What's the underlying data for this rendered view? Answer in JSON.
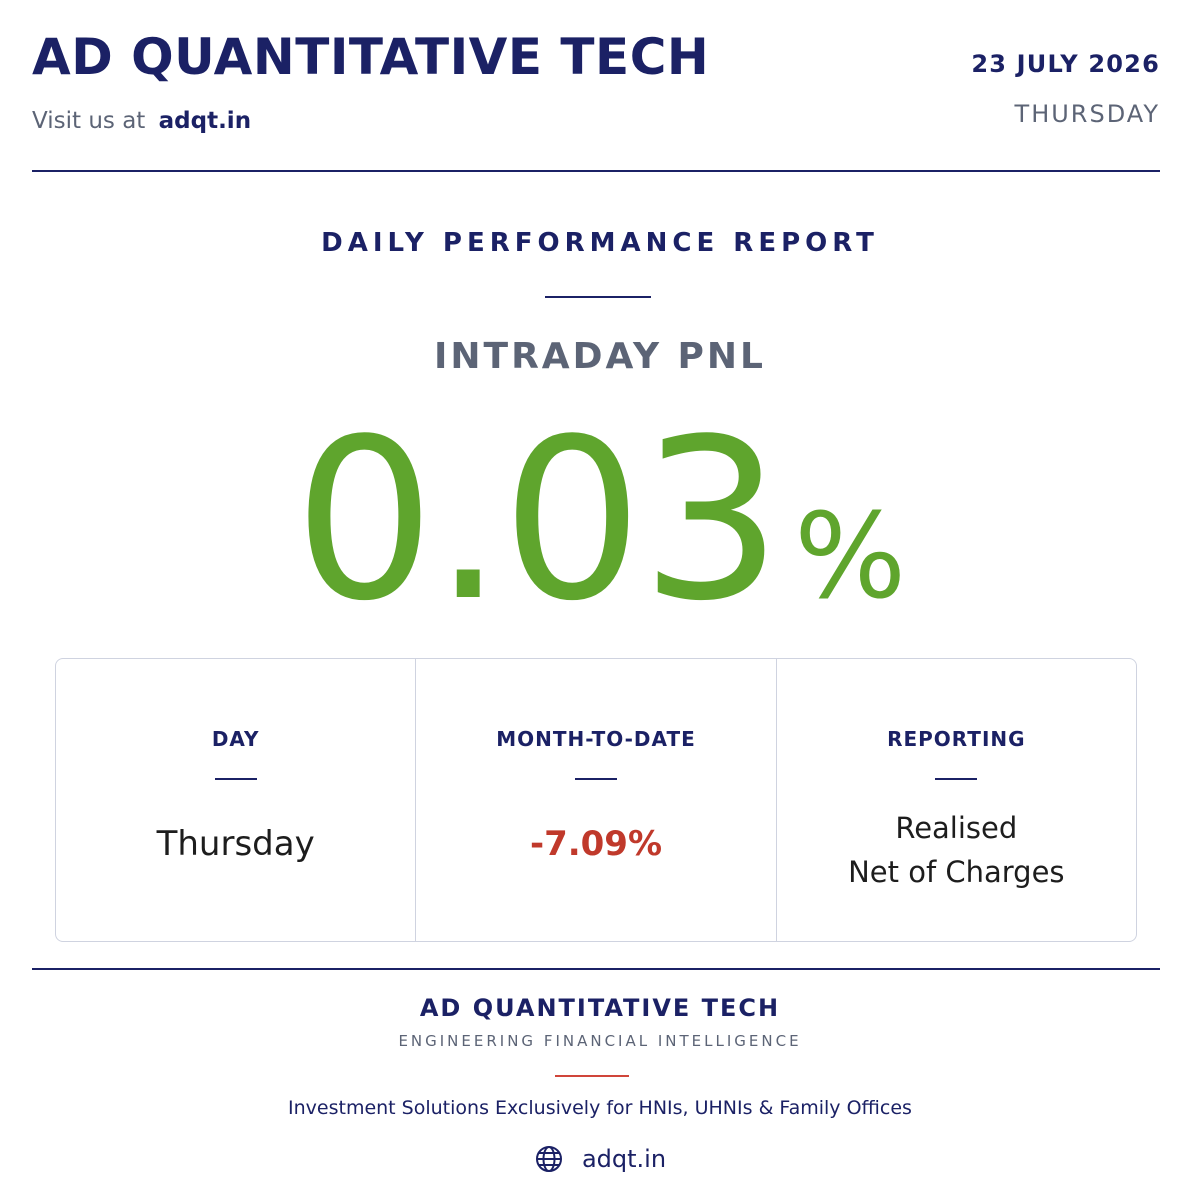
{
  "header": {
    "brand": "AD QUANTITATIVE TECH",
    "visit_prefix": "Visit us at",
    "visit_site": "adqt.in",
    "date": "23 JULY 2026",
    "weekday": "THURSDAY"
  },
  "report": {
    "title": "DAILY PERFORMANCE REPORT",
    "metric_label": "INTRADAY PNL",
    "metric_value": "0.03",
    "metric_unit": "%"
  },
  "stats": [
    {
      "label": "DAY",
      "value": "Thursday"
    },
    {
      "label": "MONTH-TO-DATE",
      "value": "-7.09%"
    },
    {
      "label": "REPORTING",
      "value_line1": "Realised",
      "value_line2": "Net of Charges"
    }
  ],
  "footer": {
    "brand": "AD QUANTITATIVE TECH",
    "tagline": "ENGINEERING FINANCIAL INTELLIGENCE",
    "audience": "Investment Solutions Exclusively for HNIs, UHNIs & Family Offices",
    "link": "adqt.in",
    "link_icon": "globe-icon"
  },
  "colors": {
    "brand_navy": "#1b2165",
    "positive_green": "#5fa52d",
    "negative_red": "#c0392b",
    "accent_red": "#d0453a",
    "muted_gray": "#5c6476"
  }
}
